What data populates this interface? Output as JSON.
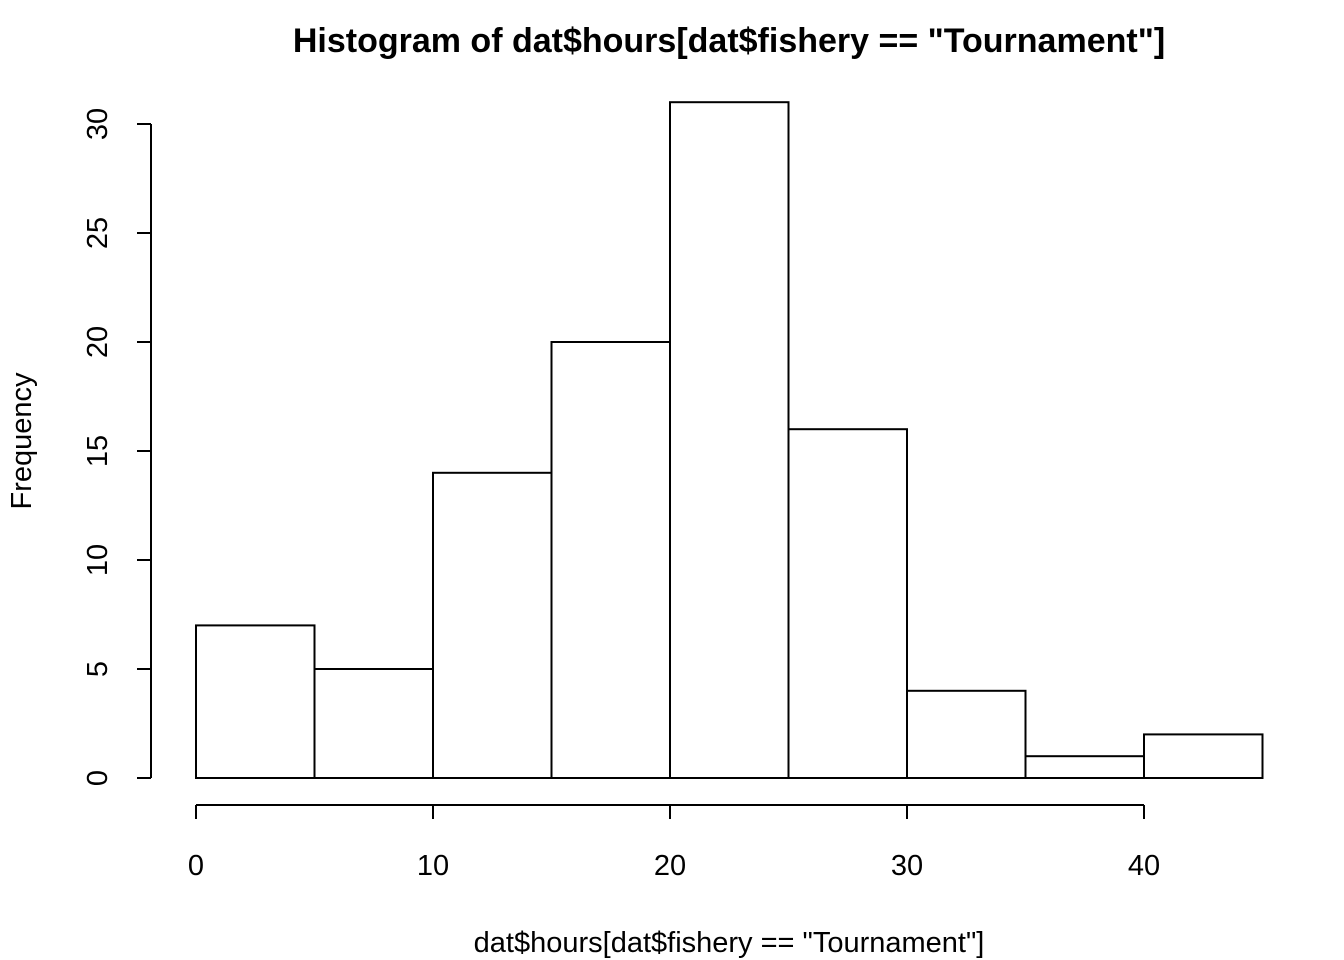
{
  "chart_data": {
    "type": "bar",
    "title": "Histogram of dat$hours[dat$fishery == \"Tournament\"]",
    "xlabel": "dat$hours[dat$fishery == \"Tournament\"]",
    "ylabel": "Frequency",
    "bins": [
      {
        "from": 0,
        "to": 5,
        "count": 7
      },
      {
        "from": 5,
        "to": 10,
        "count": 5
      },
      {
        "from": 10,
        "to": 15,
        "count": 14
      },
      {
        "from": 15,
        "to": 20,
        "count": 20
      },
      {
        "from": 20,
        "to": 25,
        "count": 31
      },
      {
        "from": 25,
        "to": 30,
        "count": 16
      },
      {
        "from": 30,
        "to": 35,
        "count": 4
      },
      {
        "from": 35,
        "to": 40,
        "count": 1
      },
      {
        "from": 40,
        "to": 45,
        "count": 2
      }
    ],
    "xlim": [
      0,
      45
    ],
    "ylim": [
      0,
      31
    ],
    "xticks": [
      "0",
      "10",
      "20",
      "30",
      "40"
    ],
    "yticks": [
      "0",
      "5",
      "10",
      "15",
      "20",
      "25",
      "30"
    ],
    "grid": false,
    "legend": "none"
  }
}
